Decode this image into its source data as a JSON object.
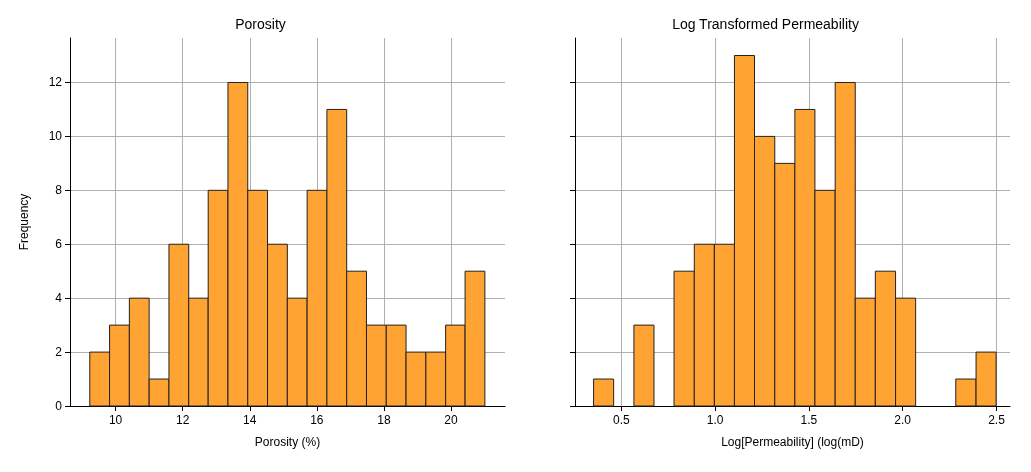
{
  "chart_data": [
    {
      "type": "histogram",
      "title": "Porosity",
      "xlabel": "Porosity (%)",
      "ylabel": "Frequency",
      "color": "#ffa333",
      "bins": [
        9.23,
        9.82,
        10.41,
        11.0,
        11.59,
        12.18,
        12.76,
        13.35,
        13.94,
        14.53,
        15.12,
        15.71,
        16.3,
        16.89,
        17.48,
        18.07,
        18.66,
        19.25,
        19.84,
        20.42,
        21.01
      ],
      "values": [
        2,
        3,
        4,
        1,
        6,
        4,
        8,
        12,
        8,
        6,
        4,
        8,
        11,
        5,
        3,
        3,
        2,
        2,
        3,
        5
      ],
      "xlim": [
        8.64,
        21.61
      ],
      "xticks": [
        10,
        12,
        14,
        16,
        18,
        20
      ],
      "ylim": [
        0,
        13.65
      ],
      "yticks": [
        0,
        2,
        4,
        6,
        8,
        10,
        12
      ],
      "grid": true
    },
    {
      "type": "histogram",
      "title": "Log Transformed Permeability",
      "xlabel": "Log[Permeability] (log(mD)",
      "color": "#ffa333",
      "bins": [
        0.352,
        0.459,
        0.567,
        0.674,
        0.781,
        0.889,
        0.996,
        1.103,
        1.21,
        1.318,
        1.425,
        1.532,
        1.64,
        1.747,
        1.854,
        1.962,
        2.069,
        2.176,
        2.283,
        2.391,
        2.498
      ],
      "values": [
        1,
        0,
        3,
        0,
        5,
        6,
        6,
        13,
        10,
        9,
        11,
        8,
        12,
        4,
        5,
        4,
        0,
        0,
        1,
        2
      ],
      "xlim": [
        0.253,
        2.572
      ],
      "xticks": [
        0.5,
        {
          "value": 1,
          "label": "1.0"
        },
        1.5,
        {
          "value": 2,
          "label": "2.0"
        },
        2.5
      ],
      "ylim": [
        0,
        13.65
      ],
      "yticks": [
        0,
        2,
        4,
        6,
        8,
        10,
        12
      ],
      "grid": true,
      "tick_labels": "x"
    }
  ]
}
